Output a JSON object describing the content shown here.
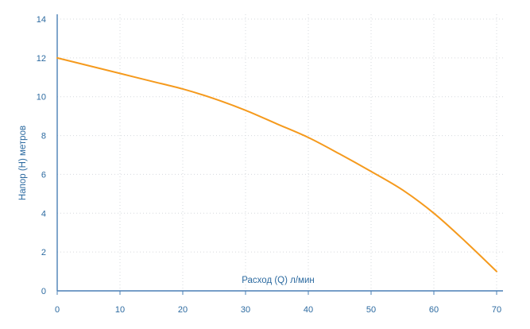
{
  "chart_data": {
    "type": "line",
    "title": "",
    "xlabel": "Расход (Q) л/мин",
    "ylabel": "Напор (H) метров",
    "xlim": [
      0,
      70
    ],
    "ylim": [
      0,
      14
    ],
    "x_ticks": [
      0,
      10,
      20,
      30,
      40,
      50,
      60,
      70
    ],
    "y_ticks": [
      0,
      2,
      4,
      6,
      8,
      10,
      12,
      14
    ],
    "grid": true,
    "legend": "none",
    "series": [
      {
        "color": "#f59a1d",
        "points": [
          [
            0,
            12.0
          ],
          [
            5,
            11.6
          ],
          [
            10,
            11.2
          ],
          [
            15,
            10.8
          ],
          [
            20,
            10.4
          ],
          [
            25,
            9.9
          ],
          [
            30,
            9.3
          ],
          [
            35,
            8.6
          ],
          [
            40,
            7.9
          ],
          [
            45,
            7.05
          ],
          [
            50,
            6.15
          ],
          [
            55,
            5.2
          ],
          [
            60,
            4.0
          ],
          [
            65,
            2.55
          ],
          [
            70,
            1.0
          ]
        ]
      }
    ]
  }
}
